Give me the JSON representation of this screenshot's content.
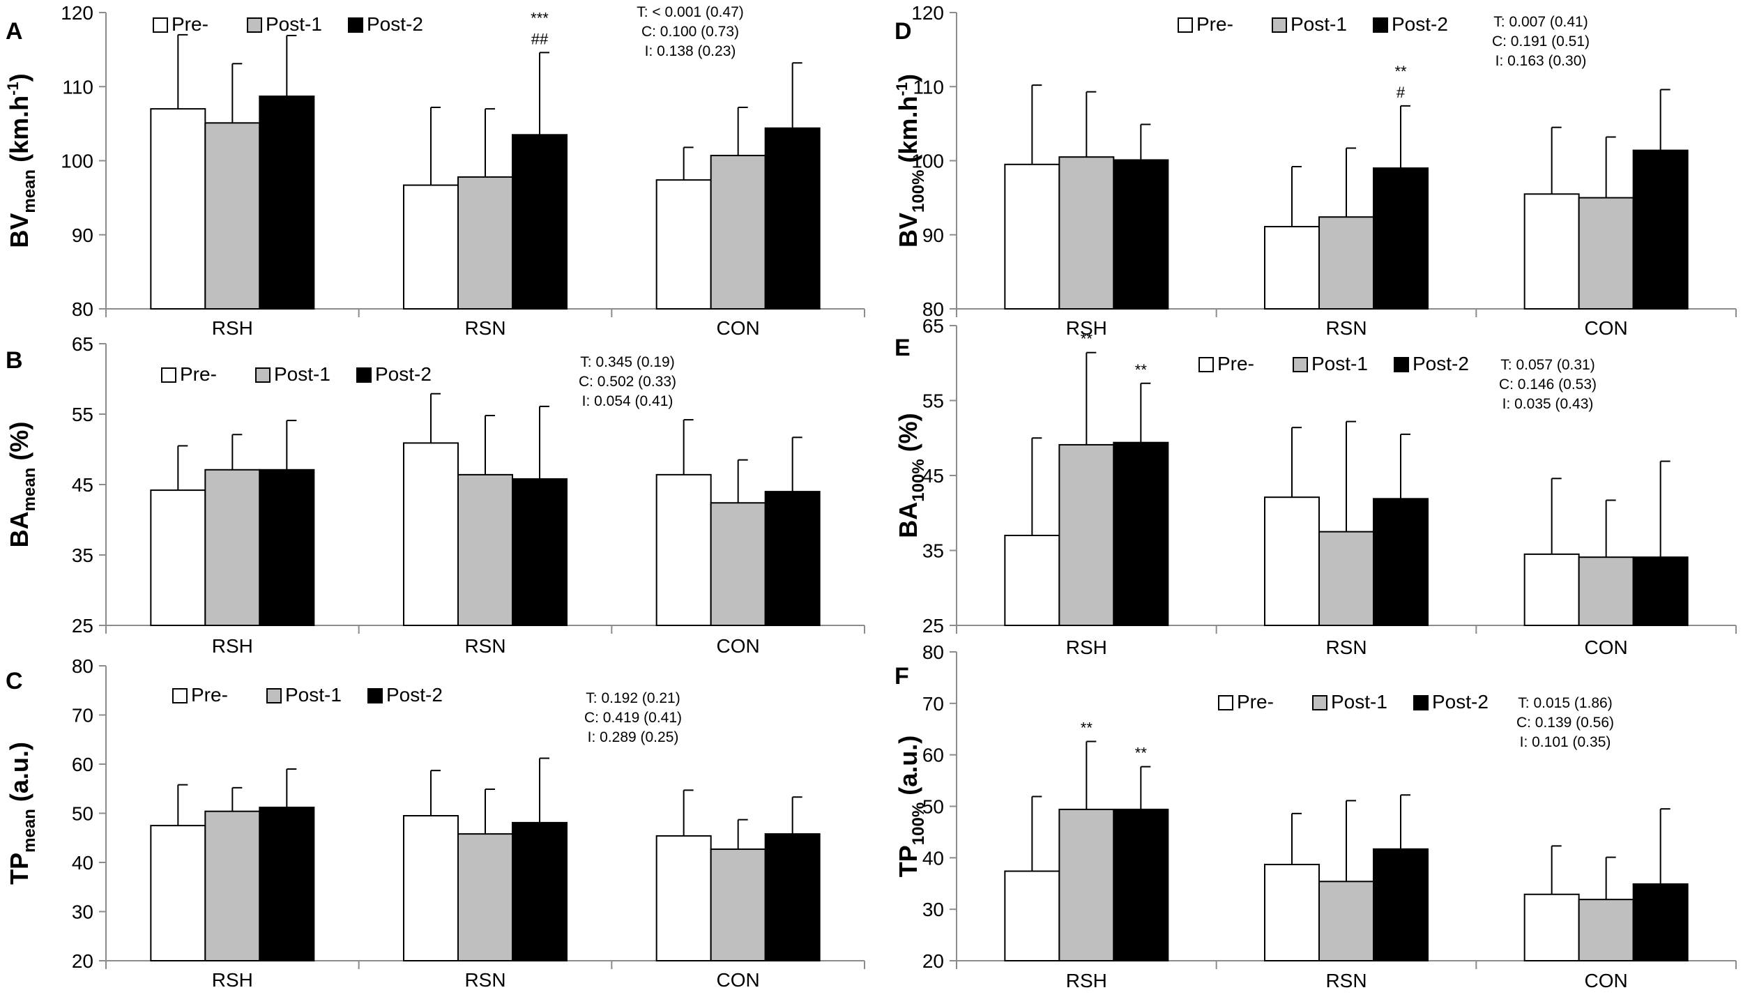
{
  "colors": {
    "pre": "#ffffff",
    "post1": "#bfbfbf",
    "post2": "#000000",
    "axis": "#8c8c8c",
    "bar_edge": "#000000"
  },
  "chart_data": [
    {
      "type": "bar",
      "panel": "A",
      "ylabel_main": "BV",
      "ylabel_sub": "mean",
      "ylabel_tail": " (km.h",
      "ylabel_sup": "-1",
      "ylabel_end": ")",
      "ylim": [
        80,
        120
      ],
      "yticks": [
        "80",
        "90",
        "100",
        "110",
        "120"
      ],
      "categories": [
        "RSH",
        "RSN",
        "CON"
      ],
      "series": [
        {
          "name": "Pre-",
          "values": [
            107,
            96.7,
            97.4
          ],
          "errors": [
            10,
            10.5,
            4.4
          ]
        },
        {
          "name": "Post-1",
          "values": [
            105.1,
            97.8,
            100.7
          ],
          "errors": [
            8,
            9.2,
            6.5
          ]
        },
        {
          "name": "Post-2",
          "values": [
            108.7,
            103.5,
            104.4
          ],
          "errors": [
            8.2,
            11.1,
            8.8
          ]
        }
      ],
      "annotations": [
        {
          "category": 1,
          "series": 2,
          "lines": [
            "***",
            "##"
          ]
        }
      ],
      "stats": [
        "T: < 0.001 (0.47)",
        "C: 0.100 (0.73)",
        "I:  0.138 (0.23)"
      ],
      "legend_position": "top"
    },
    {
      "type": "bar",
      "panel": "B",
      "ylabel_main": "BA",
      "ylabel_sub": "mean",
      "ylabel_tail": " (%)",
      "ylabel_sup": "",
      "ylabel_end": "",
      "ylim": [
        25,
        65
      ],
      "yticks": [
        "25",
        "35",
        "45",
        "55",
        "65"
      ],
      "categories": [
        "RSH",
        "RSN",
        "CON"
      ],
      "series": [
        {
          "name": "Pre-",
          "values": [
            44.2,
            50.9,
            46.4
          ],
          "errors": [
            6.3,
            7,
            7.8
          ]
        },
        {
          "name": "Post-1",
          "values": [
            47.1,
            46.4,
            42.4
          ],
          "errors": [
            5,
            8.4,
            6.1
          ]
        },
        {
          "name": "Post-2",
          "values": [
            47.1,
            45.8,
            44
          ],
          "errors": [
            7,
            10.3,
            7.7
          ]
        }
      ],
      "annotations": [],
      "stats": [
        "T: 0.345 (0.19)",
        "C: 0.502 (0.33)",
        "I:  0.054 (0.41)"
      ],
      "legend_position": "top"
    },
    {
      "type": "bar",
      "panel": "C",
      "ylabel_main": "TP",
      "ylabel_sub": "mean",
      "ylabel_tail": " (a.u.)",
      "ylabel_sup": "",
      "ylabel_end": "",
      "ylim": [
        20,
        80
      ],
      "yticks": [
        "20",
        "30",
        "40",
        "50",
        "60",
        "70",
        "80"
      ],
      "categories": [
        "RSH",
        "RSN",
        "CON"
      ],
      "series": [
        {
          "name": "Pre-",
          "values": [
            47.5,
            49.5,
            45.4
          ],
          "errors": [
            8.3,
            9.2,
            9.3
          ]
        },
        {
          "name": "Post-1",
          "values": [
            50.4,
            45.8,
            42.7
          ],
          "errors": [
            4.8,
            9.1,
            6
          ]
        },
        {
          "name": "Post-2",
          "values": [
            51.2,
            48.1,
            45.8
          ],
          "errors": [
            7.8,
            13.1,
            7.5
          ]
        }
      ],
      "annotations": [],
      "stats": [
        "T: 0.192 (0.21)",
        "C: 0.419 (0.41)",
        "I:  0.289 (0.25)"
      ],
      "legend_position": "top"
    },
    {
      "type": "bar",
      "panel": "D",
      "ylabel_main": "BV",
      "ylabel_sub": "100%",
      "ylabel_tail": " (km.h",
      "ylabel_sup": "-1",
      "ylabel_end": ")",
      "ylim": [
        80,
        120
      ],
      "yticks": [
        "80",
        "90",
        "100",
        "110",
        "120"
      ],
      "categories": [
        "RSH",
        "RSN",
        "CON"
      ],
      "series": [
        {
          "name": "Pre-",
          "values": [
            99.5,
            91.1,
            95.5
          ],
          "errors": [
            10.7,
            8.1,
            9
          ]
        },
        {
          "name": "Post-1",
          "values": [
            100.5,
            92.4,
            95
          ],
          "errors": [
            8.8,
            9.3,
            8.2
          ]
        },
        {
          "name": "Post-2",
          "values": [
            100.1,
            99,
            101.4
          ],
          "errors": [
            4.8,
            8.4,
            8.2
          ]
        }
      ],
      "annotations": [
        {
          "category": 1,
          "series": 2,
          "lines": [
            "**",
            "#"
          ]
        }
      ],
      "stats": [
        "T: 0.007 (0.41)",
        "C: 0.191 (0.51)",
        "I:  0.163 (0.30)"
      ],
      "legend_position": "top"
    },
    {
      "type": "bar",
      "panel": "E",
      "ylabel_main": "BA",
      "ylabel_sub": "100%",
      "ylabel_tail": " (%)",
      "ylabel_sup": "",
      "ylabel_end": "",
      "ylim": [
        25,
        65
      ],
      "yticks": [
        "25",
        "35",
        "45",
        "55",
        "65"
      ],
      "categories": [
        "RSH",
        "RSN",
        "CON"
      ],
      "series": [
        {
          "name": "Pre-",
          "values": [
            37,
            42.1,
            34.5
          ],
          "errors": [
            13,
            9.3,
            10.1
          ]
        },
        {
          "name": "Post-1",
          "values": [
            49.1,
            37.5,
            34.1
          ],
          "errors": [
            12.3,
            14.7,
            7.6
          ]
        },
        {
          "name": "Post-2",
          "values": [
            49.4,
            41.9,
            34.1
          ],
          "errors": [
            7.9,
            8.6,
            12.8
          ]
        }
      ],
      "annotations": [
        {
          "category": 0,
          "series": 1,
          "lines": [
            "**"
          ]
        },
        {
          "category": 0,
          "series": 2,
          "lines": [
            "**"
          ]
        }
      ],
      "stats": [
        "T: 0.057 (0.31)",
        "C: 0.146 (0.53)",
        "I:  0.035 (0.43)"
      ],
      "legend_position": "top"
    },
    {
      "type": "bar",
      "panel": "F",
      "ylabel_main": "TP",
      "ylabel_sub": "100%",
      "ylabel_tail": " (a.u.)",
      "ylabel_sup": "",
      "ylabel_end": "",
      "ylim": [
        20,
        80
      ],
      "yticks": [
        "20",
        "30",
        "40",
        "50",
        "60",
        "70",
        "80"
      ],
      "categories": [
        "RSH",
        "RSN",
        "CON"
      ],
      "series": [
        {
          "name": "Pre-",
          "values": [
            37.4,
            38.7,
            32.9
          ],
          "errors": [
            14.5,
            9.9,
            9.4
          ]
        },
        {
          "name": "Post-1",
          "values": [
            49.4,
            35.4,
            31.9
          ],
          "errors": [
            13.2,
            15.7,
            8.2
          ]
        },
        {
          "name": "Post-2",
          "values": [
            49.4,
            41.7,
            34.9
          ],
          "errors": [
            8.3,
            10.5,
            14.6
          ]
        }
      ],
      "annotations": [
        {
          "category": 0,
          "series": 1,
          "lines": [
            "**"
          ]
        },
        {
          "category": 0,
          "series": 2,
          "lines": [
            "**"
          ]
        }
      ],
      "stats": [
        "T: 0.015 (1.86)",
        "C: 0.139 (0.56)",
        "I:  0.101 (0.35)"
      ],
      "legend_position": "top"
    }
  ]
}
